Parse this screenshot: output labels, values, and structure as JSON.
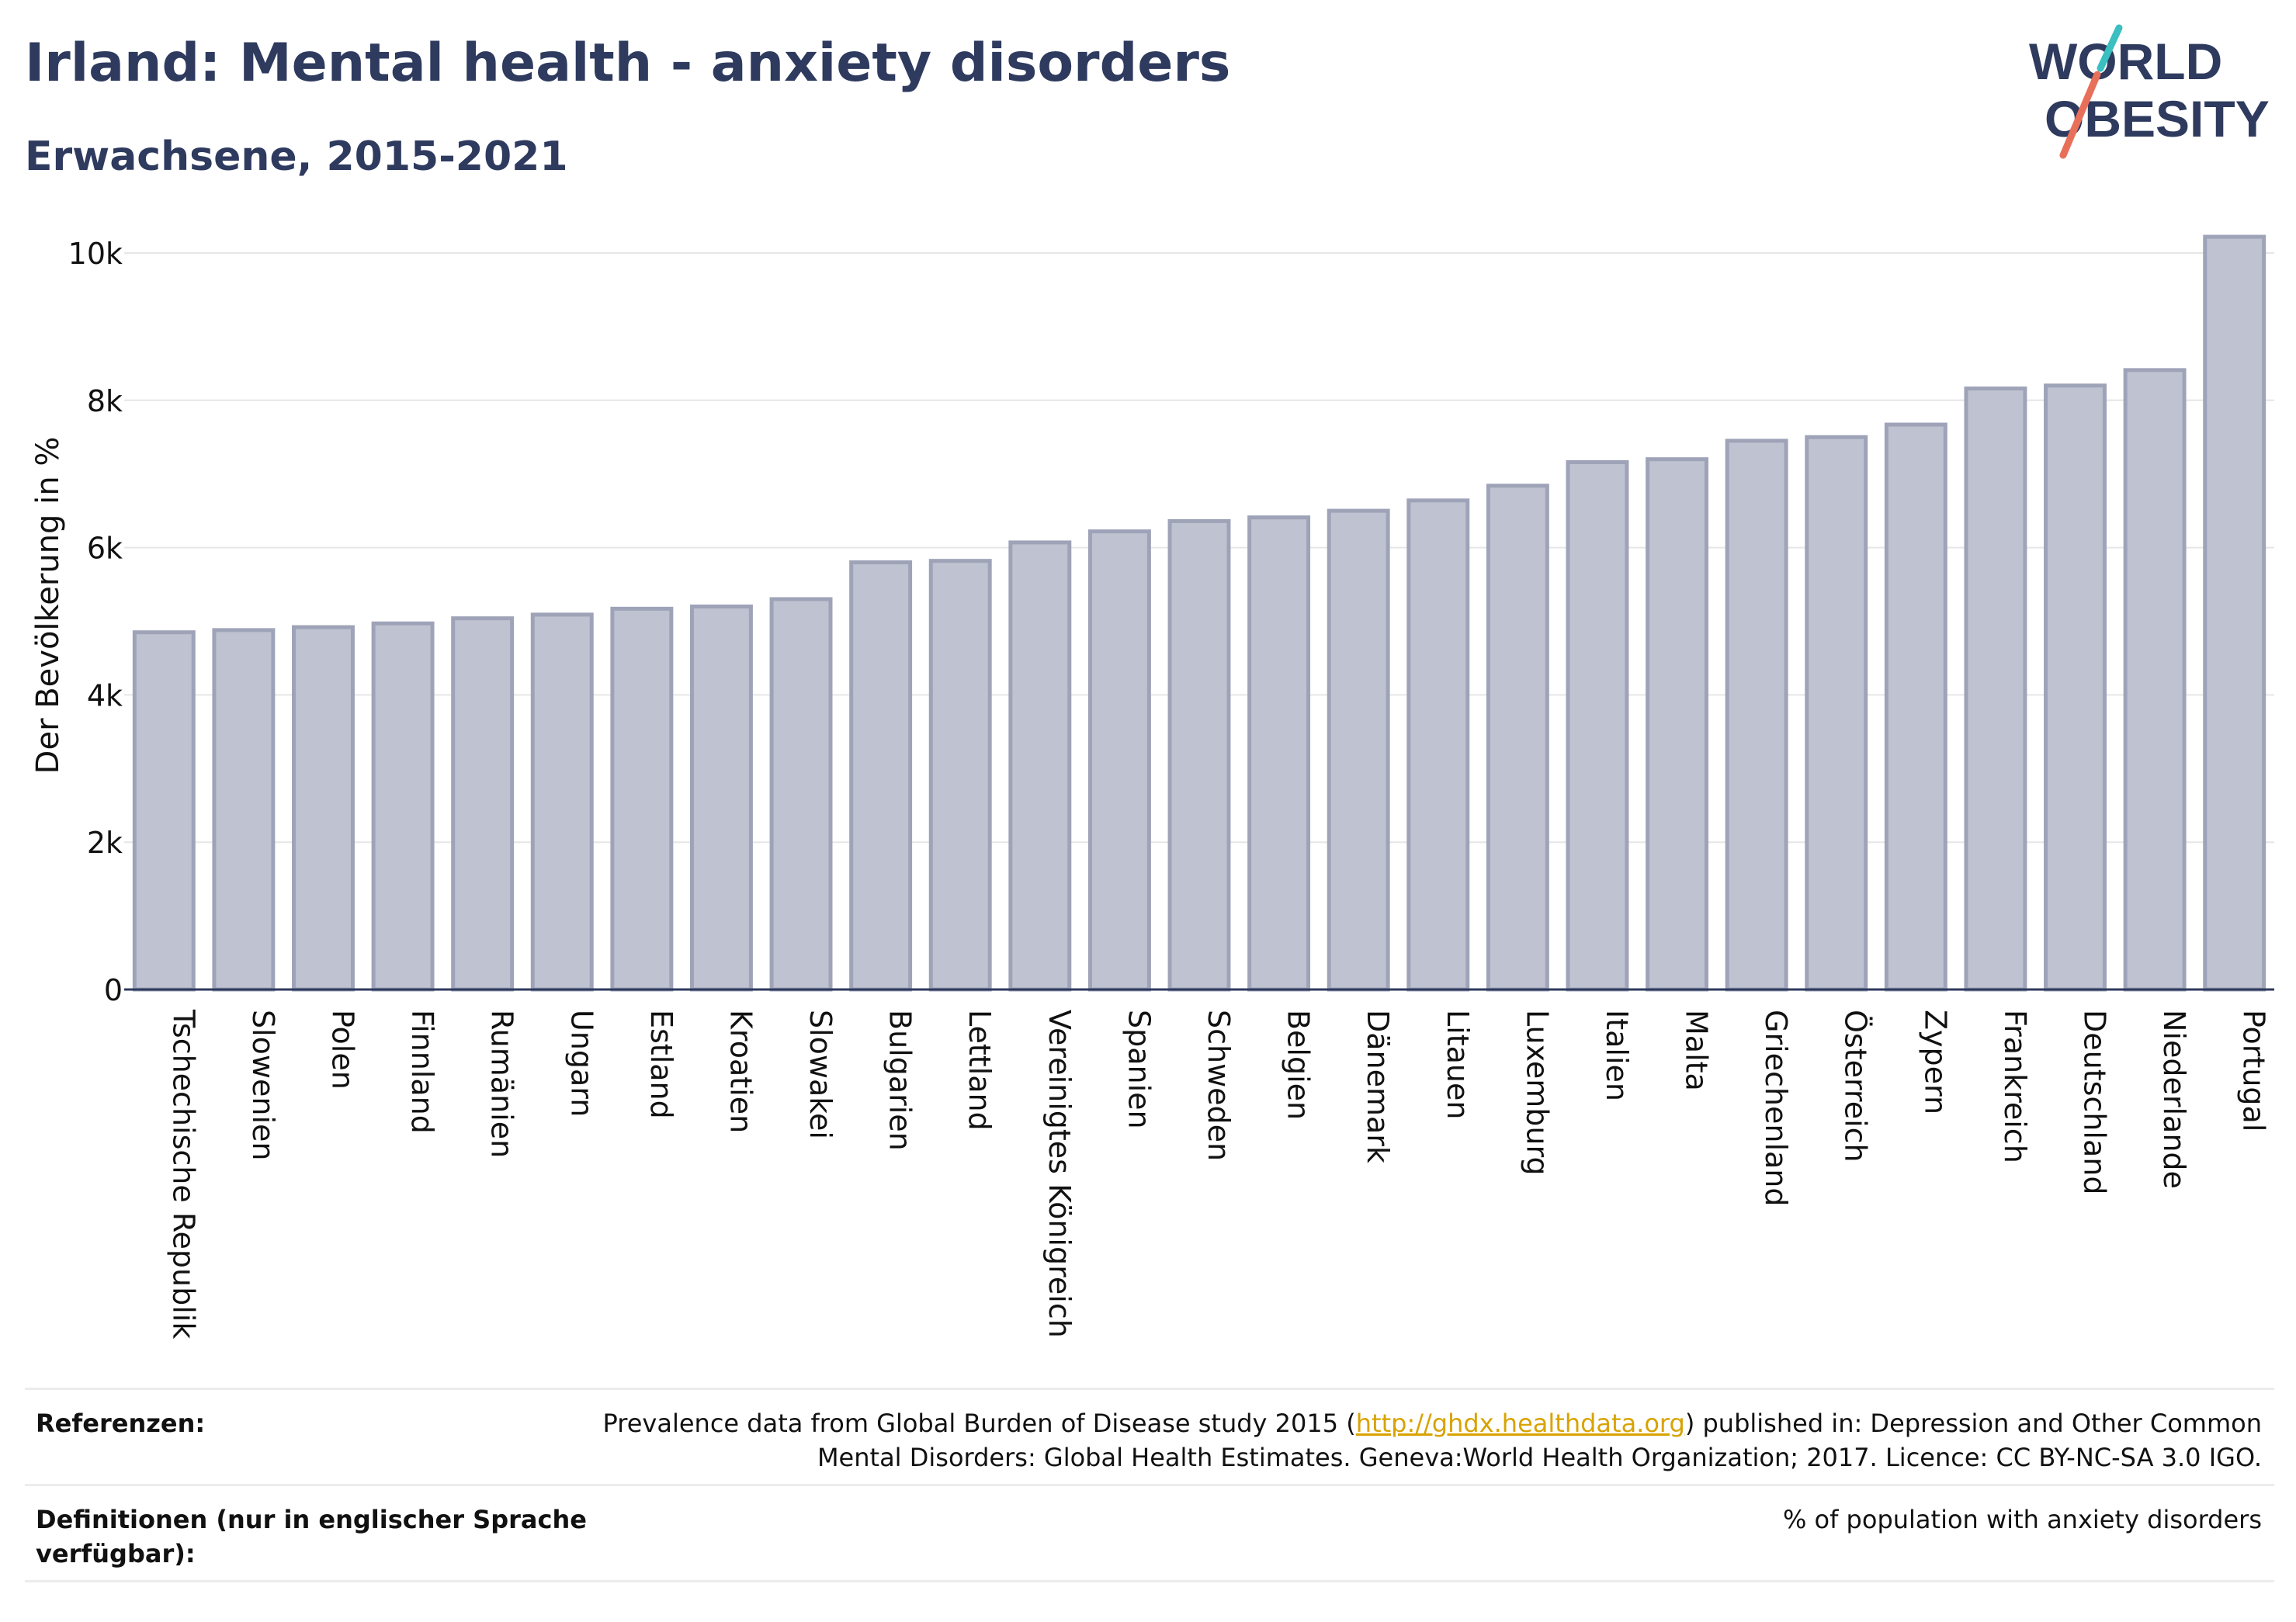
{
  "header": {
    "title": "Irland: Mental health - anxiety disorders",
    "subtitle": "Erwachsene, 2015-2021"
  },
  "logo": {
    "line1": "WORLD",
    "line2": "OBESITY",
    "accent_colors": [
      "#3bbfc0",
      "#e8705a"
    ],
    "text_color": "#2e3a5e"
  },
  "chart_data": {
    "type": "bar",
    "ylabel": "Der Bevölkerung in %",
    "ylim": [
      0,
      10400
    ],
    "yticks": [
      0,
      2000,
      4000,
      6000,
      8000,
      10000
    ],
    "ytick_labels": [
      "0",
      "2k",
      "4k",
      "6k",
      "8k",
      "10k"
    ],
    "grid": true,
    "bar_color": "#bfc2d0",
    "bar_edge_color": "#9ea3b8",
    "categories": [
      "Tschechische Republik",
      "Slowenien",
      "Polen",
      "Finnland",
      "Rumänien",
      "Ungarn",
      "Estland",
      "Kroatien",
      "Slowakei",
      "Bulgarien",
      "Lettland",
      "Vereinigtes Königreich",
      "Spanien",
      "Schweden",
      "Belgien",
      "Dänemark",
      "Litauen",
      "Luxemburg",
      "Italien",
      "Malta",
      "Griechenland",
      "Österreich",
      "Zypern",
      "Frankreich",
      "Deutschland",
      "Niederlande",
      "Portugal"
    ],
    "values": [
      4850,
      4880,
      4920,
      4970,
      5040,
      5090,
      5170,
      5200,
      5300,
      5800,
      5820,
      6070,
      6220,
      6360,
      6410,
      6500,
      6640,
      6840,
      7160,
      7200,
      7450,
      7500,
      7670,
      8160,
      8200,
      8410,
      10220
    ]
  },
  "footer": {
    "references_label": "Referenzen:",
    "references_pre": "Prevalence data from Global Burden of Disease study 2015 (",
    "references_link": "http://ghdx.healthdata.org",
    "references_post": ") published in: Depression and Other Common",
    "references_line2": "Mental Disorders: Global Health Estimates. Geneva:World Health Organization; 2017. Licence: CC BY-NC-SA 3.0 IGO.",
    "definitions_label_line1": "Definitionen (nur in englischer Sprache",
    "definitions_label_line2": "verfügbar):",
    "definitions_text": "% of population with anxiety disorders"
  }
}
